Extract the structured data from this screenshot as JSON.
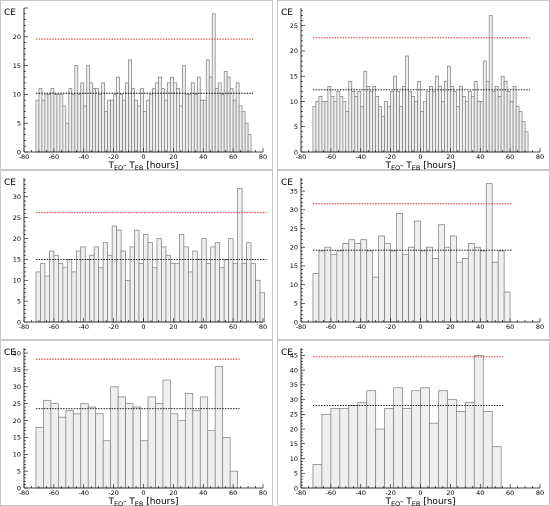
{
  "chart_data": [
    {
      "type": "bar",
      "ylabel": "CE",
      "xlabel_main1": "T",
      "xlabel_sub1": "EQ",
      "xlabel_main2": "- T",
      "xlabel_sub2": "EB",
      "xlabel_unit": " [hours]",
      "xlim": [
        -80,
        80
      ],
      "ylim": [
        0,
        25
      ],
      "xticks": [
        -80,
        -60,
        -40,
        -20,
        0,
        20,
        40,
        60,
        80
      ],
      "yticks": [
        0,
        5,
        10,
        15,
        20
      ],
      "bin_start": -72,
      "bin_width": 2,
      "values": [
        9,
        11,
        9,
        10,
        10,
        11,
        10,
        10,
        10,
        8,
        5,
        11,
        10,
        15,
        10,
        12,
        8,
        15,
        12,
        11,
        11,
        10,
        12,
        7,
        9,
        9,
        10,
        13,
        10,
        9,
        12,
        16,
        11,
        9,
        8,
        11,
        7,
        9,
        10,
        11,
        12,
        13,
        11,
        9,
        12,
        13,
        12,
        11,
        8,
        15,
        10,
        10,
        12,
        10,
        13,
        9,
        9,
        16,
        13,
        24,
        11,
        12,
        10,
        14,
        13,
        11,
        9,
        12,
        8,
        7,
        5,
        3
      ],
      "mean_line": 10.2,
      "threshold_line": 19.6,
      "colors": {
        "bar_fill": "#efefef",
        "bar_stroke": "#7a7a7a",
        "mean": "#000000",
        "threshold": "#e41a1c"
      }
    },
    {
      "type": "bar",
      "ylabel": "CE",
      "xlabel_main1": "T",
      "xlabel_sub1": "EQ",
      "xlabel_main2": "- T",
      "xlabel_sub2": "EB",
      "xlabel_unit": " [hours]",
      "xlim": [
        -80,
        80
      ],
      "ylim": [
        0,
        28.5
      ],
      "xticks": [
        -80,
        -60,
        -40,
        -20,
        0,
        20,
        40,
        60,
        80
      ],
      "yticks": [
        0,
        5,
        10,
        15,
        20,
        25
      ],
      "bin_start": -72,
      "bin_width": 2,
      "values": [
        9,
        10,
        11,
        10,
        10,
        13,
        11,
        10,
        12,
        11,
        10,
        8,
        14,
        12,
        11,
        12,
        9,
        16,
        13,
        12,
        13,
        11,
        9,
        7,
        10,
        9,
        12,
        15,
        12,
        9,
        13,
        19,
        12,
        11,
        10,
        14,
        8,
        10,
        12,
        13,
        12,
        15,
        13,
        10,
        14,
        17,
        13,
        12,
        9,
        13,
        11,
        10,
        12,
        11,
        14,
        10,
        10,
        18,
        14,
        27,
        12,
        13,
        11,
        15,
        14,
        12,
        10,
        13,
        9,
        8,
        6,
        4
      ],
      "mean_line": 12.3,
      "threshold_line": 22.6,
      "colors": {
        "bar_fill": "#efefef",
        "bar_stroke": "#7a7a7a",
        "mean": "#000000",
        "threshold": "#e41a1c"
      }
    },
    {
      "type": "bar",
      "ylabel": "CE",
      "xlabel_main1": "",
      "xlabel_sub1": "",
      "xlabel_main2": "",
      "xlabel_sub2": "",
      "xlabel_unit": "",
      "xlim": [
        -80,
        80
      ],
      "ylim": [
        0,
        34.5
      ],
      "xticks": [
        -80,
        -60,
        -40,
        -20,
        0,
        20,
        40,
        60,
        80
      ],
      "yticks": [
        0,
        5,
        10,
        15,
        20,
        25,
        30
      ],
      "bin_start": -72,
      "bin_width": 3,
      "values": [
        12,
        14,
        11,
        17,
        16,
        14,
        13,
        15,
        12,
        17,
        18,
        15,
        16,
        18,
        13,
        19,
        16,
        23,
        22,
        17,
        10,
        18,
        22,
        14,
        21,
        19,
        13,
        20,
        18,
        16,
        14,
        14,
        21,
        18,
        12,
        17,
        15,
        20,
        14,
        18,
        19,
        13,
        15,
        20,
        14,
        32,
        14,
        19,
        14,
        10,
        7
      ],
      "mean_line": 15.0,
      "threshold_line": 26.2,
      "colors": {
        "bar_fill": "#efefef",
        "bar_stroke": "#7a7a7a",
        "mean": "#000000",
        "threshold": "#e41a1c"
      }
    },
    {
      "type": "bar",
      "ylabel": "CE",
      "xlabel_main1": "",
      "xlabel_sub1": "",
      "xlabel_main2": "",
      "xlabel_sub2": "",
      "xlabel_unit": "",
      "xlim": [
        -80,
        80
      ],
      "ylim": [
        0,
        38.5
      ],
      "xticks": [
        -80,
        -60,
        -40,
        -20,
        0,
        20,
        40,
        60,
        80
      ],
      "yticks": [
        0,
        5,
        10,
        15,
        20,
        25,
        30,
        35
      ],
      "bin_start": -72,
      "bin_width": 4,
      "values": [
        13,
        19,
        20,
        18,
        19,
        21,
        22,
        21,
        22,
        19,
        12,
        23,
        21,
        19,
        29,
        18,
        20,
        27,
        19,
        20,
        17,
        26,
        20,
        23,
        16,
        17,
        21,
        20,
        19,
        37,
        16,
        19,
        8
      ],
      "mean_line": 19.2,
      "threshold_line": 31.6,
      "colors": {
        "bar_fill": "#efefef",
        "bar_stroke": "#7a7a7a",
        "mean": "#000000",
        "threshold": "#e41a1c"
      }
    },
    {
      "type": "bar",
      "ylabel": "CE",
      "xlabel_main1": "T",
      "xlabel_sub1": "EQ",
      "xlabel_main2": "- T",
      "xlabel_sub2": "EB",
      "xlabel_unit": " [hours]",
      "xlim": [
        -80,
        80
      ],
      "ylim": [
        0,
        41.5
      ],
      "xticks": [
        -80,
        -60,
        -40,
        -20,
        0,
        20,
        40,
        60,
        80
      ],
      "yticks": [
        0,
        5,
        10,
        15,
        20,
        25,
        30,
        35,
        40
      ],
      "bin_start": -72,
      "bin_width": 5,
      "values": [
        18,
        26,
        25,
        21,
        23,
        22,
        25,
        24,
        22,
        14,
        30,
        27,
        25,
        24,
        14,
        27,
        25,
        32,
        22,
        20,
        28,
        23,
        27,
        17,
        36,
        15,
        5
      ],
      "mean_line": 23.5,
      "threshold_line": 38.2,
      "colors": {
        "bar_fill": "#efefef",
        "bar_stroke": "#7a7a7a",
        "mean": "#000000",
        "threshold": "#e41a1c"
      }
    },
    {
      "type": "bar",
      "ylabel": "CE",
      "xlabel_main1": "T",
      "xlabel_sub1": "EQ",
      "xlabel_main2": "- T",
      "xlabel_sub2": "EB",
      "xlabel_unit": " [hours]",
      "xlim": [
        -80,
        80
      ],
      "ylim": [
        0,
        47.5
      ],
      "xticks": [
        -80,
        -60,
        -40,
        -20,
        0,
        20,
        40,
        60,
        80
      ],
      "yticks": [
        0,
        5,
        10,
        15,
        20,
        25,
        30,
        35,
        40,
        45
      ],
      "bin_start": -72,
      "bin_width": 6,
      "values": [
        8,
        25,
        27,
        27,
        28,
        29,
        33,
        20,
        27,
        34,
        27,
        33,
        34,
        22,
        33,
        30,
        26,
        29,
        45,
        26,
        14
      ],
      "mean_line": 28.0,
      "threshold_line": 44.5,
      "colors": {
        "bar_fill": "#efefef",
        "bar_stroke": "#7a7a7a",
        "mean": "#000000",
        "threshold": "#e41a1c"
      }
    }
  ]
}
